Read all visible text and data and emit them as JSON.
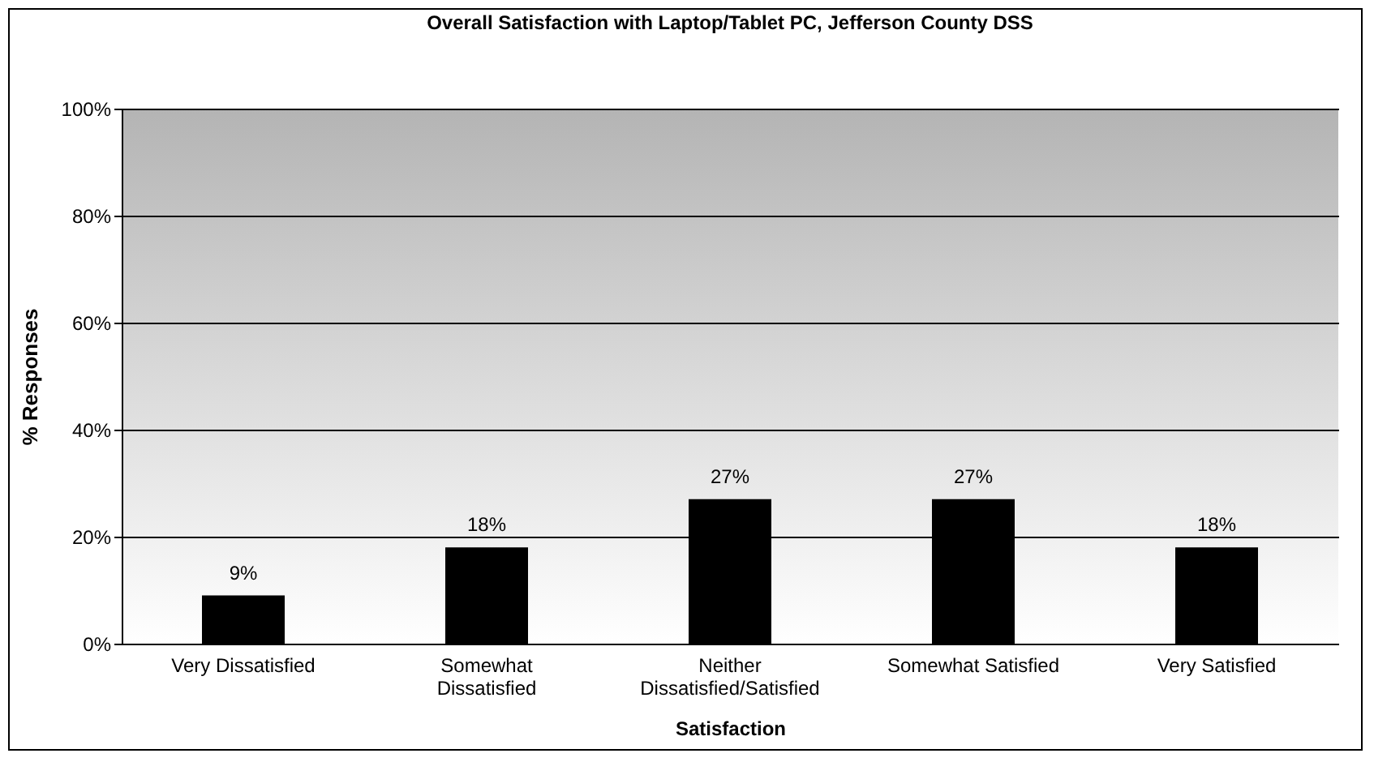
{
  "chart_data": {
    "type": "bar",
    "title": "Overall Satisfaction with Laptop/Tablet PC, Jefferson County DSS",
    "xlabel": "Satisfaction",
    "ylabel": "% Responses",
    "categories": [
      "Very Dissatisfied",
      "Somewhat Dissatisfied",
      "Neither Dissatisfied/Satisfied",
      "Somewhat Satisfied",
      "Very Satisfied"
    ],
    "values": [
      9,
      18,
      27,
      27,
      18
    ],
    "value_labels": [
      "9%",
      "18%",
      "27%",
      "27%",
      "18%"
    ],
    "color": "#000000",
    "ylim": [
      0,
      100
    ],
    "yticks": [
      {
        "value": 0,
        "label": "0%"
      },
      {
        "value": 20,
        "label": "20%"
      },
      {
        "value": 40,
        "label": "40%"
      },
      {
        "value": 60,
        "label": "60%"
      },
      {
        "value": 80,
        "label": "80%"
      },
      {
        "value": 100,
        "label": "100%"
      }
    ],
    "grid": "y"
  }
}
